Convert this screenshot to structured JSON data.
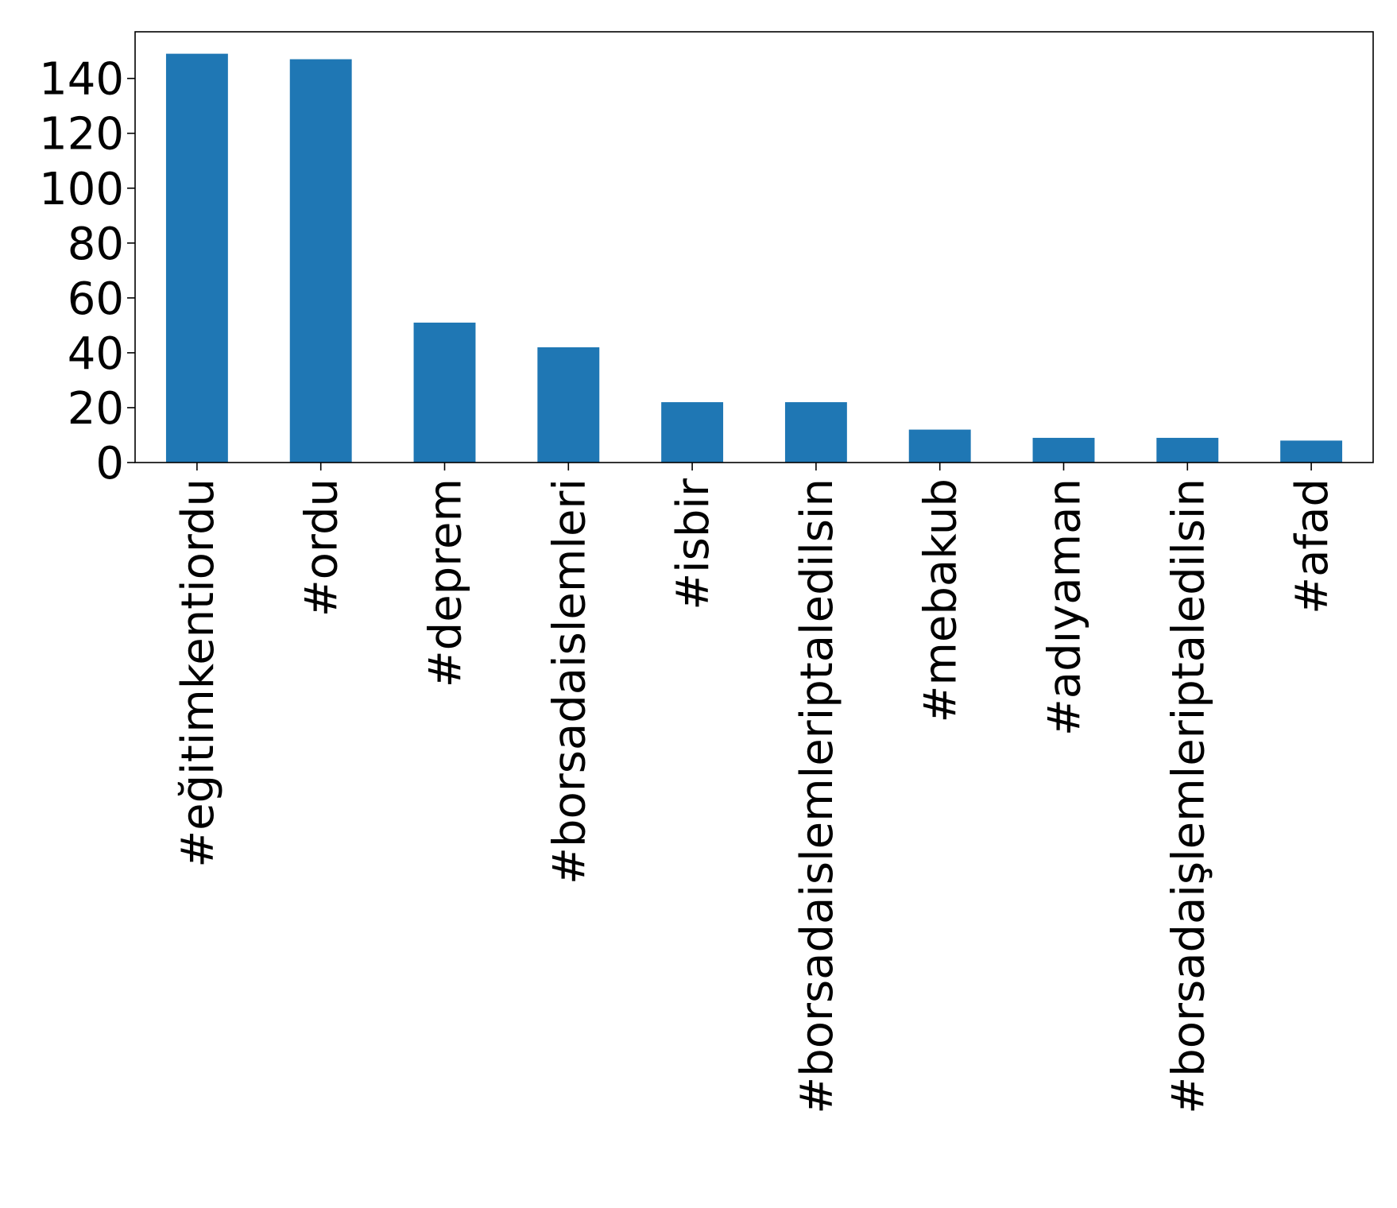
{
  "chart_data": {
    "type": "bar",
    "title": "",
    "xlabel": "",
    "ylabel": "",
    "categories": [
      "#eğitimkentiordu",
      "#ordu",
      "#deprem",
      "#borsadaislemleri",
      "#isbir",
      "#borsadaislemleriptaledilsin",
      "#mebakub",
      "#adıyaman",
      "#borsadaişlemleriptaledilsin",
      "#afad"
    ],
    "values": [
      149,
      147,
      51,
      42,
      22,
      22,
      12,
      9,
      9,
      8
    ],
    "ylim": [
      0,
      157
    ],
    "yticks": [
      "0",
      "20",
      "40",
      "60",
      "80",
      "100",
      "120",
      "140"
    ],
    "grid": false,
    "legend": "none",
    "bar_color": "#1f77b4"
  }
}
